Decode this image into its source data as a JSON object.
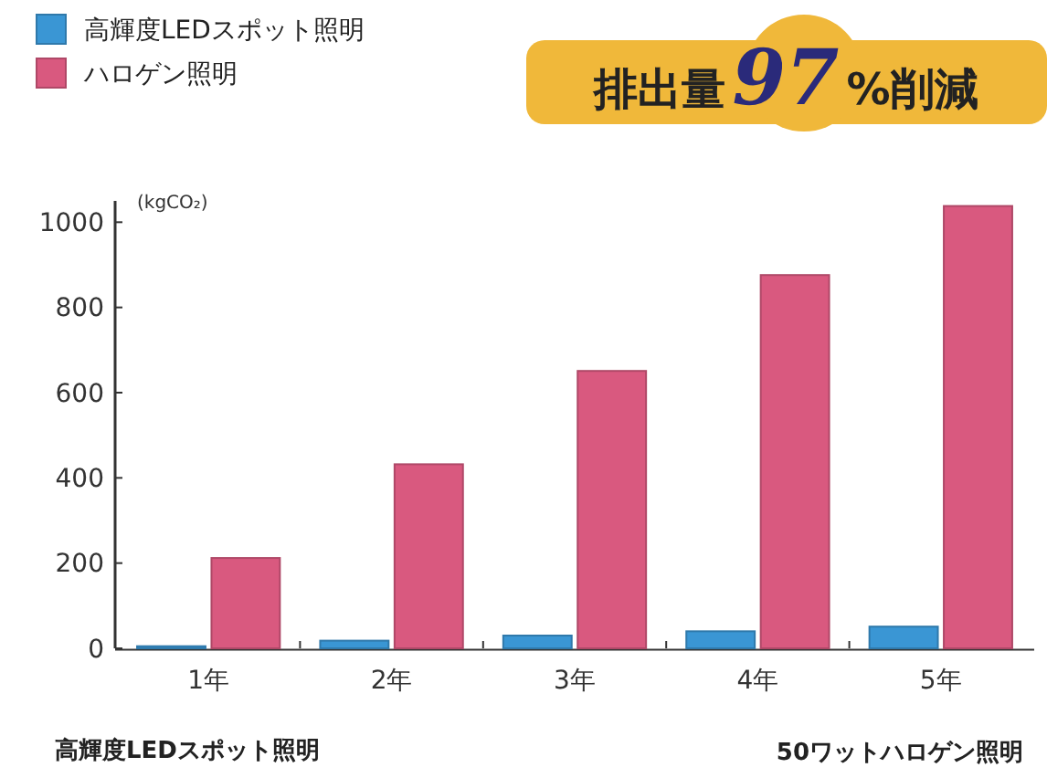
{
  "chart_data": {
    "type": "bar",
    "ylabel": "(kgCO₂)",
    "categories": [
      "1年",
      "2年",
      "3年",
      "4年",
      "5年"
    ],
    "series": [
      {
        "name": "高輝度LEDスポット照明",
        "color": "#3a96d4",
        "values": [
          5,
          18,
          30,
          40,
          51
        ]
      },
      {
        "name": "ハロゲン照明",
        "color": "#d9597f",
        "values": [
          212,
          432,
          651,
          876,
          1038
        ]
      }
    ],
    "ylim": [
      0,
      1050
    ],
    "yticks": [
      0,
      200,
      400,
      600,
      800,
      1000
    ],
    "grid": false,
    "legend": "top left",
    "annotations": [
      "排出量97%削減",
      "高輝度LEDスポット照明",
      "50ワットハロゲン照明"
    ]
  }
}
